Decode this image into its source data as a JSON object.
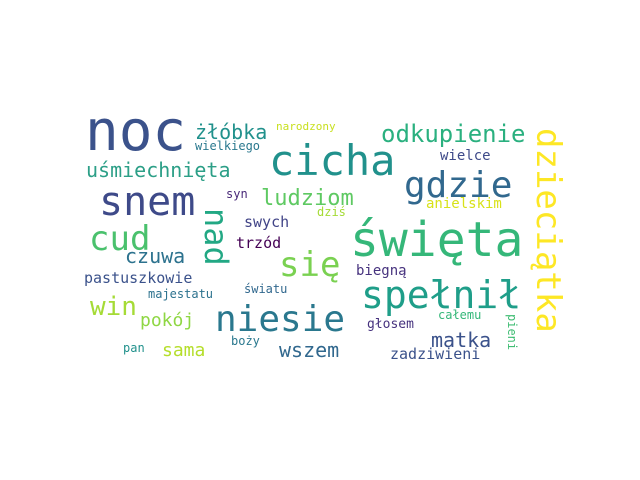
{
  "words": [
    {
      "key": "noc",
      "text": "noc",
      "color": "#3b528b"
    },
    {
      "key": "cicha",
      "text": "cicha",
      "color": "#21918c"
    },
    {
      "key": "swieta",
      "text": "święta",
      "color": "#35b779"
    },
    {
      "key": "snem",
      "text": "snem",
      "color": "#3e4a89"
    },
    {
      "key": "gdzie",
      "text": "gdzie",
      "color": "#31688e"
    },
    {
      "key": "cud",
      "text": "cud",
      "color": "#4ac16d"
    },
    {
      "key": "nad",
      "text": "nad",
      "color": "#22a884"
    },
    {
      "key": "sie",
      "text": "się",
      "color": "#7ad151"
    },
    {
      "key": "spelnil",
      "text": "spełnił",
      "color": "#1f9e89"
    },
    {
      "key": "niesie",
      "text": "niesie",
      "color": "#2a788e"
    },
    {
      "key": "dzieciatka",
      "text": "dzieciątka",
      "color": "#fde725"
    },
    {
      "key": "odkupienie",
      "text": "odkupienie",
      "color": "#2ab07f"
    },
    {
      "key": "zlobka",
      "text": "żłóbka",
      "color": "#21918c"
    },
    {
      "key": "usmiechnieta",
      "text": "uśmiechnięta",
      "color": "#2c9f87"
    },
    {
      "key": "ludziom",
      "text": "ludziom",
      "color": "#5ec962"
    },
    {
      "key": "win",
      "text": "win",
      "color": "#a5db36"
    },
    {
      "key": "czuwa",
      "text": "czuwa",
      "color": "#2c728e"
    },
    {
      "key": "pokoj",
      "text": "pokój",
      "color": "#8fd744"
    },
    {
      "key": "sama",
      "text": "sama",
      "color": "#b5de2b"
    },
    {
      "key": "wszem",
      "text": "wszem",
      "color": "#31688e"
    },
    {
      "key": "matka",
      "text": "matka",
      "color": "#3b528b"
    },
    {
      "key": "zadziwieni",
      "text": "zadziwieni",
      "color": "#3b528b"
    },
    {
      "key": "narodzony",
      "text": "narodzony",
      "color": "#c8e020"
    },
    {
      "key": "wielkiego",
      "text": "wielkiego",
      "color": "#2a788e"
    },
    {
      "key": "wielce",
      "text": "wielce",
      "color": "#3e4a89"
    },
    {
      "key": "anielskim",
      "text": "anielskim",
      "color": "#d8e219"
    },
    {
      "key": "syn",
      "text": "syn",
      "color": "#482878"
    },
    {
      "key": "swych",
      "text": "swych",
      "color": "#414487"
    },
    {
      "key": "dzis",
      "text": "dziś",
      "color": "#a5db36"
    },
    {
      "key": "trzod",
      "text": "trzód",
      "color": "#440154"
    },
    {
      "key": "pastuszkowie",
      "text": "pastuszkowie",
      "color": "#3b528b"
    },
    {
      "key": "biegna",
      "text": "biegną",
      "color": "#46327e"
    },
    {
      "key": "majestatu",
      "text": "majestatu",
      "color": "#2c728e"
    },
    {
      "key": "swiatu",
      "text": "światu",
      "color": "#31688e"
    },
    {
      "key": "glosem",
      "text": "głosem",
      "color": "#46327e"
    },
    {
      "key": "calemu",
      "text": "całemu",
      "color": "#35b779"
    },
    {
      "key": "pieni",
      "text": "pieni",
      "color": "#3fbc73"
    },
    {
      "key": "pan",
      "text": "pan",
      "color": "#21918c"
    },
    {
      "key": "bozy",
      "text": "boży",
      "color": "#2a788e"
    }
  ]
}
